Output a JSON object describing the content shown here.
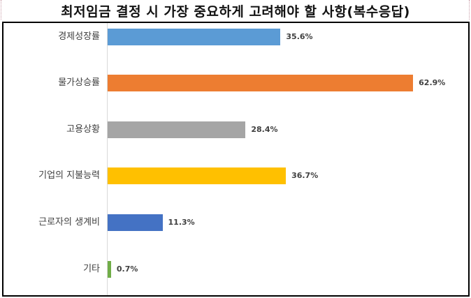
{
  "chart_data": {
    "type": "bar",
    "orientation": "horizontal",
    "title": "최저임금 결정 시 가장 중요하게 고려해야 할 사항(복수응답)",
    "categories": [
      "경제성장률",
      "물가상승률",
      "고용상황",
      "기업의 지불능력",
      "근로자의 생계비",
      "기타"
    ],
    "values": [
      35.6,
      62.9,
      28.4,
      36.7,
      11.3,
      0.7
    ],
    "value_labels": [
      "35.6%",
      "62.9%",
      "28.4%",
      "36.7%",
      "11.3%",
      "0.7%"
    ],
    "colors": [
      "#5b9bd5",
      "#ed7d31",
      "#a5a5a5",
      "#ffc000",
      "#4472c4",
      "#70ad47"
    ],
    "xlabel": "",
    "ylabel": "",
    "unit": "%",
    "grid": false,
    "legend": "none",
    "xlim": [
      0,
      65
    ]
  },
  "title": "최저임금 결정 시 가장 중요하게 고려해야 할 사항(복수응답)"
}
